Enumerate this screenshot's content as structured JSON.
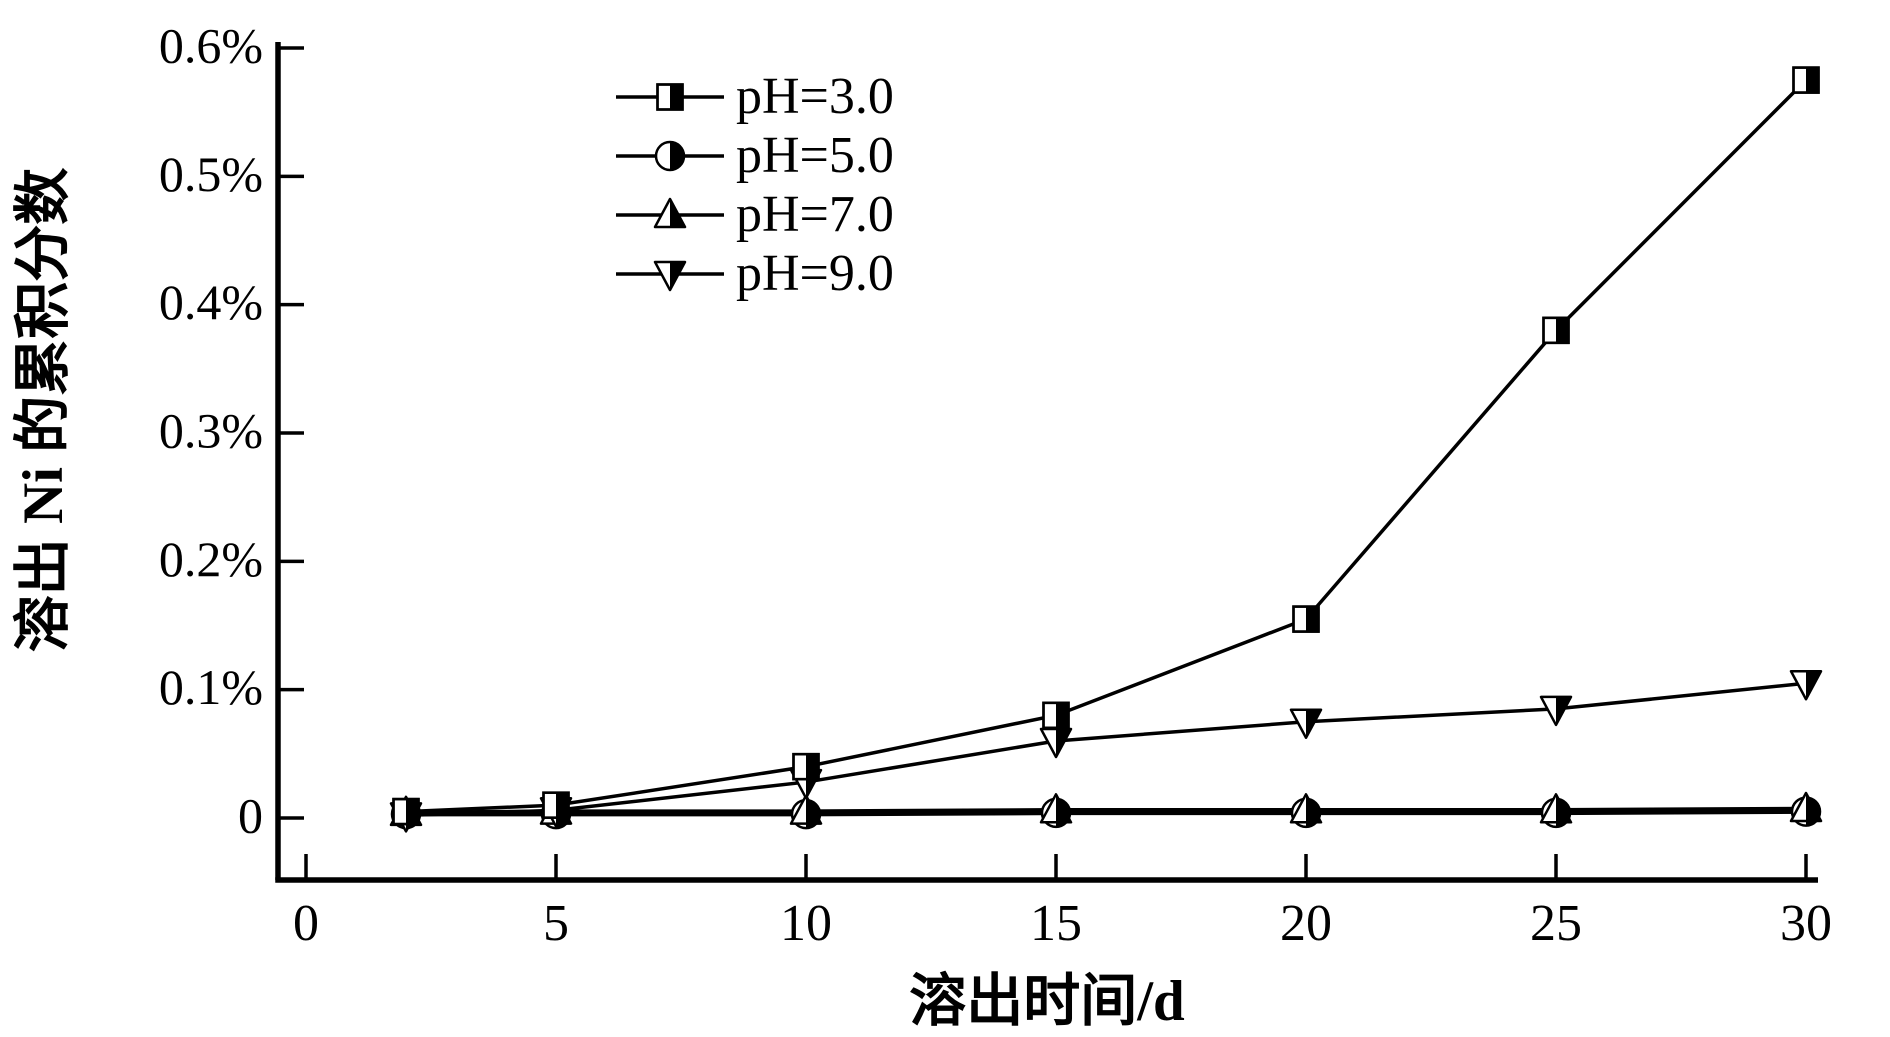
{
  "figure": {
    "background": "#ffffff",
    "foreground": "#000000"
  },
  "chart_data": {
    "type": "line",
    "title": "",
    "xlabel": "溶出时间/d",
    "ylabel": "溶出 Ni 的累积分数",
    "x": [
      2,
      5,
      10,
      15,
      20,
      25,
      30
    ],
    "series": [
      {
        "name": "pH=3.0",
        "marker": "half-square",
        "line_width": 3.5,
        "values": [
          0.005,
          0.01,
          0.04,
          0.08,
          0.155,
          0.38,
          0.575
        ]
      },
      {
        "name": "pH=5.0",
        "marker": "half-circle",
        "line_width": 4.5,
        "values": [
          0.003,
          0.003,
          0.003,
          0.004,
          0.004,
          0.004,
          0.005
        ]
      },
      {
        "name": "pH=7.0",
        "marker": "half-triangle-up",
        "line_width": 4.5,
        "values": [
          0.004,
          0.005,
          0.005,
          0.006,
          0.006,
          0.006,
          0.007
        ]
      },
      {
        "name": "pH=9.0",
        "marker": "half-triangle-down",
        "line_width": 3.5,
        "values": [
          0.002,
          0.006,
          0.028,
          0.06,
          0.075,
          0.085,
          0.105
        ]
      }
    ],
    "xticks": {
      "values": [
        0,
        5,
        10,
        15,
        20,
        25,
        30
      ],
      "labels": [
        "0",
        "5",
        "10",
        "15",
        "20",
        "25",
        "30"
      ]
    },
    "yticks": {
      "values": [
        0,
        0.1,
        0.2,
        0.3,
        0.4,
        0.5,
        0.6
      ],
      "labels": [
        "0",
        "0.1%",
        "0.2%",
        "0.3%",
        "0.4%",
        "0.5%",
        "0.6%"
      ]
    },
    "xlim": [
      -0.56,
      30.3
    ],
    "ylim": [
      -0.048,
      0.605
    ],
    "grid": false,
    "legend": {
      "position": "upper-left-inside",
      "entries": [
        "pH=3.0",
        "pH=5.0",
        "pH=7.0",
        "pH=9.0"
      ]
    },
    "line_color": "#000000",
    "marker_fill_style": "right-half-black"
  }
}
